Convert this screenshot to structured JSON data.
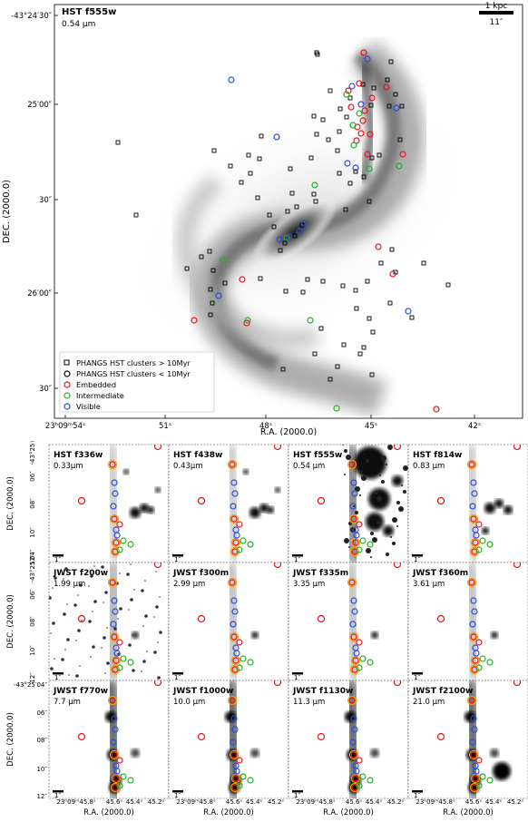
{
  "main_panel": {
    "filter": "HST f555w",
    "wavelength": "0.54 μm",
    "scalebar_top": "1 kpc",
    "scalebar_bottom": "11″",
    "ylabel": "DEC. (2000.0)",
    "xlabel": "R.A. (2000.0)",
    "yticks": [
      "-43°24′30″",
      "25′00″",
      "30″",
      "26′00″",
      "30″"
    ],
    "xticks": [
      "23ʰ09ᵐ54ˢ",
      "51ˢ",
      "48ˢ",
      "45ˢ",
      "42ˢ"
    ],
    "legend": [
      {
        "label": "PHANGS HST clusters > 10Myr",
        "marker": "square",
        "color": "#000000"
      },
      {
        "label": "PHANGS HST clusters < 10Myr",
        "marker": "circle",
        "color": "#000000"
      },
      {
        "label": "Embedded",
        "marker": "circle",
        "color": "#e8141c"
      },
      {
        "label": "Intermediate",
        "marker": "circle",
        "color": "#22b022"
      },
      {
        "label": "Visible",
        "marker": "circle",
        "color": "#2a4ce0"
      }
    ]
  },
  "cutouts": {
    "rows": [
      {
        "ylabel": "DEC. (2000.0)",
        "yticks": [
          "-43°25′04″",
          "06″",
          "08″",
          "10″",
          "12″"
        ],
        "panels": [
          {
            "filter": "HST f336w",
            "wavelength": "0.33μm",
            "scale": "1″"
          },
          {
            "filter": "HST f438w",
            "wavelength": "0.43μm",
            "scale": "1″"
          },
          {
            "filter": "HST f555w",
            "wavelength": "0.54 μm",
            "scale": "1″"
          },
          {
            "filter": "HST f814w",
            "wavelength": "0.83 μm",
            "scale": "1″"
          }
        ]
      },
      {
        "ylabel": "DEC. (2000.0)",
        "yticks": [
          "-43°25′04″",
          "06″",
          "08″",
          "10″",
          "12″"
        ],
        "panels": [
          {
            "filter": "JWST f200w",
            "wavelength": "1.99 μm",
            "scale": "1″"
          },
          {
            "filter": "JWST f300m",
            "wavelength": "2.99 μm",
            "scale": "1″"
          },
          {
            "filter": "JWST f335m",
            "wavelength": "3.35 μm",
            "scale": "1″"
          },
          {
            "filter": "JWST f360m",
            "wavelength": "3.61 μm",
            "scale": "1″"
          }
        ]
      },
      {
        "ylabel": "DEC. (2000.0)",
        "yticks": [
          "-43°25′04″",
          "06″",
          "08″",
          "10″",
          "12″"
        ],
        "panels": [
          {
            "filter": "JWST f770w",
            "wavelength": "7.7 μm",
            "scale": "1″"
          },
          {
            "filter": "JWST f1000w",
            "wavelength": "10.0 μm",
            "scale": "1″"
          },
          {
            "filter": "JWST f1130w",
            "wavelength": "11.3 μm",
            "scale": "1″"
          },
          {
            "filter": "JWST f2100w",
            "wavelength": "21.0 μm",
            "scale": "1″"
          }
        ]
      }
    ],
    "xticks": [
      "23ʰ09ᵐ45.8ˢ",
      "45.6ˢ",
      "45.4ˢ",
      "45.2ˢ"
    ],
    "xlabel": "R.A. (2000.0)"
  },
  "colors": {
    "embedded": "#e8141c",
    "intermediate": "#22b022",
    "visible": "#2a4ce0",
    "cluster": "#000000",
    "highlight": "#f5a000"
  }
}
